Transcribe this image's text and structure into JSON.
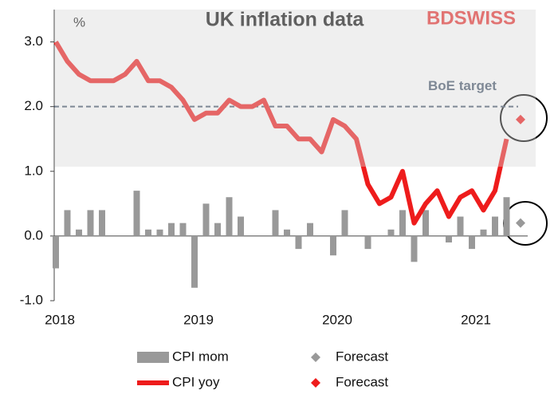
{
  "chart_data": {
    "type": "combo",
    "title": "UK inflation data",
    "y_unit_label": "%",
    "logo": "BDSWISS",
    "categories": [
      "2018",
      null,
      null,
      null,
      null,
      null,
      null,
      null,
      null,
      null,
      null,
      null,
      "2019",
      null,
      null,
      null,
      null,
      null,
      null,
      null,
      null,
      null,
      null,
      null,
      "2020",
      null,
      null,
      null,
      null,
      null,
      null,
      null,
      null,
      null,
      null,
      null,
      "2021",
      null,
      null,
      null,
      null
    ],
    "series": [
      {
        "name": "CPI mom",
        "type": "bar",
        "color": "#999999",
        "values": [
          -0.5,
          0.4,
          0.1,
          0.4,
          0.4,
          0.0,
          0.0,
          0.7,
          0.1,
          0.1,
          0.2,
          0.2,
          -0.8,
          0.5,
          0.2,
          0.6,
          0.3,
          0.0,
          0.0,
          0.4,
          0.1,
          -0.2,
          0.2,
          0.0,
          -0.3,
          0.4,
          0.0,
          -0.2,
          0.0,
          0.1,
          0.4,
          -0.4,
          0.4,
          0.0,
          -0.1,
          0.3,
          -0.2,
          0.1,
          0.3,
          0.6,
          null
        ]
      },
      {
        "name": "Forecast",
        "type": "scatter",
        "color": "#999999",
        "values": [
          null,
          null,
          null,
          null,
          null,
          null,
          null,
          null,
          null,
          null,
          null,
          null,
          null,
          null,
          null,
          null,
          null,
          null,
          null,
          null,
          null,
          null,
          null,
          null,
          null,
          null,
          null,
          null,
          null,
          null,
          null,
          null,
          null,
          null,
          null,
          null,
          null,
          null,
          null,
          null,
          0.2
        ]
      },
      {
        "name": "CPI yoy",
        "type": "line",
        "color": "#ee1c1c",
        "values": [
          3.0,
          2.7,
          2.5,
          2.4,
          2.4,
          2.4,
          2.5,
          2.7,
          2.4,
          2.4,
          2.3,
          2.1,
          1.8,
          1.9,
          1.9,
          2.1,
          2.0,
          2.0,
          2.1,
          1.7,
          1.7,
          1.5,
          1.5,
          1.3,
          1.8,
          1.7,
          1.5,
          0.8,
          0.5,
          0.6,
          1.0,
          0.2,
          0.5,
          0.7,
          0.3,
          0.6,
          0.7,
          0.4,
          0.7,
          1.5,
          null
        ]
      },
      {
        "name": "Forecast",
        "type": "scatter",
        "color": "#ee1c1c",
        "values": [
          null,
          null,
          null,
          null,
          null,
          null,
          null,
          null,
          null,
          null,
          null,
          null,
          null,
          null,
          null,
          null,
          null,
          null,
          null,
          null,
          null,
          null,
          null,
          null,
          null,
          null,
          null,
          null,
          null,
          null,
          null,
          null,
          null,
          null,
          null,
          null,
          null,
          null,
          null,
          null,
          1.8
        ]
      }
    ],
    "target": 2.0,
    "target_label": "BoE  target",
    "ylim": [
      -1.0,
      3.5
    ],
    "yticks": [
      {
        "value": -1.0,
        "label": "-1.0"
      },
      {
        "value": 0.0,
        "label": "0.0"
      },
      {
        "value": 1.0,
        "label": "1.0"
      },
      {
        "value": 2.0,
        "label": "2.0"
      },
      {
        "value": 3.0,
        "label": "3.0"
      }
    ]
  }
}
